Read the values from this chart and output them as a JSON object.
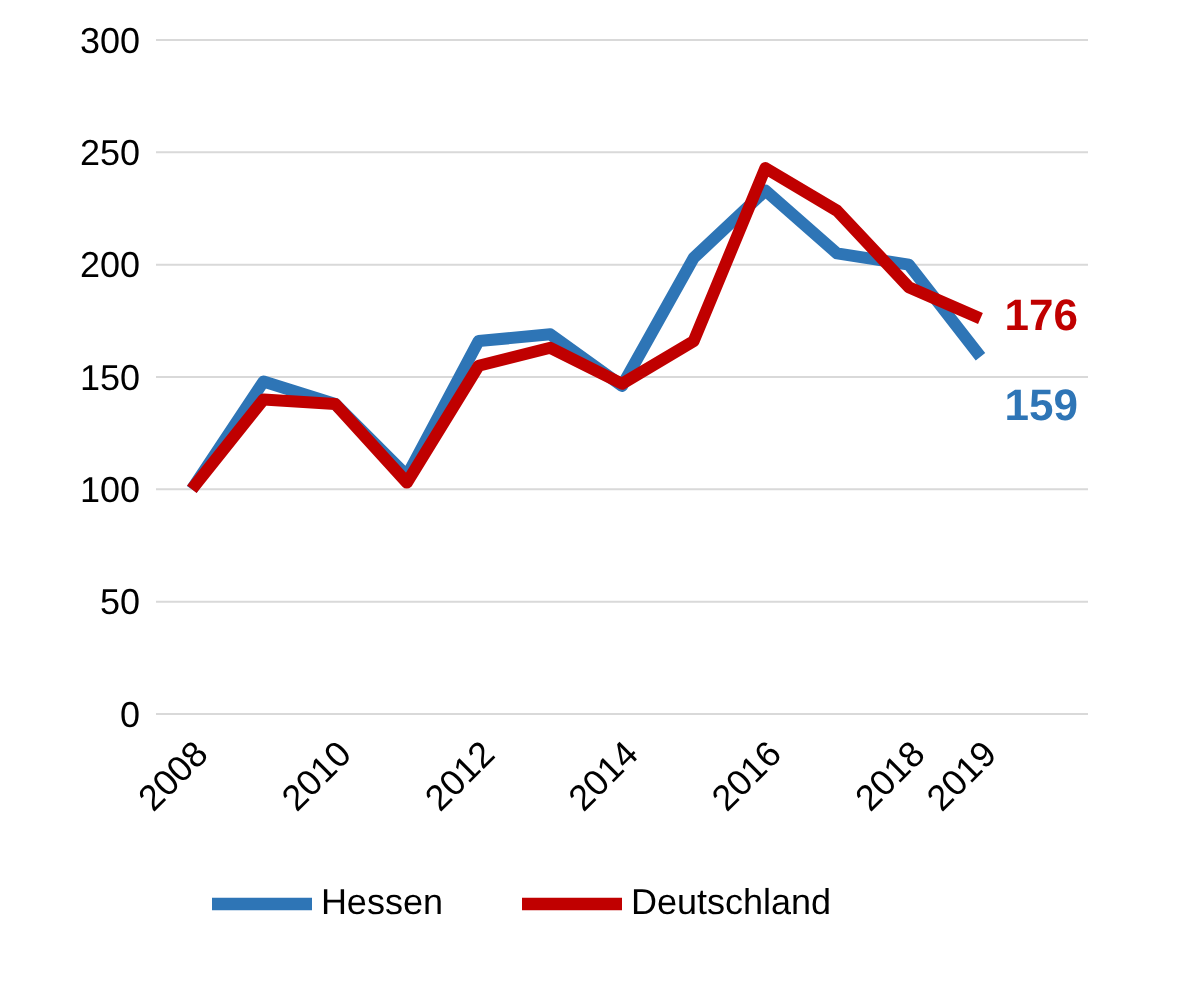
{
  "chart_data": {
    "type": "line",
    "x": [
      2008,
      2009,
      2010,
      2011,
      2012,
      2013,
      2014,
      2015,
      2016,
      2017,
      2018,
      2019
    ],
    "xlim": [
      2007.5,
      2020.5
    ],
    "xticks": [
      2008,
      2010,
      2012,
      2014,
      2016,
      2018,
      2019
    ],
    "ylim": [
      0,
      300
    ],
    "yticks": [
      0,
      50,
      100,
      150,
      200,
      250,
      300
    ],
    "series": [
      {
        "name": "Hessen",
        "color": "#2e75b6",
        "values": [
          100,
          148,
          138,
          106,
          166,
          169,
          146,
          203,
          233,
          205,
          200,
          159
        ],
        "value_labels": [
          null,
          null,
          null,
          null,
          null,
          null,
          null,
          null,
          null,
          null,
          null,
          "159"
        ]
      },
      {
        "name": "Deutschland",
        "color": "#c00000",
        "values": [
          100,
          140,
          138,
          103,
          155,
          163,
          147,
          166,
          243,
          224,
          190,
          176
        ],
        "value_labels": [
          null,
          null,
          null,
          null,
          null,
          null,
          null,
          null,
          null,
          null,
          null,
          "176"
        ]
      }
    ],
    "grid": "y",
    "legend": "bottom",
    "marker": "none",
    "line_style": "solid"
  }
}
